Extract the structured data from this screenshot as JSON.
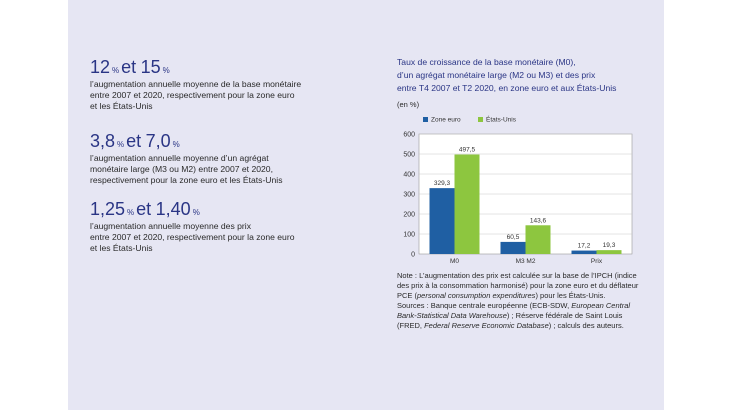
{
  "stats": [
    {
      "value1": "12",
      "unit": "%",
      "joiner": "et",
      "value2": "15",
      "text": "l’augmentation annuelle moyenne de la base monétaire\nentre 2007 et 2020, respectivement pour la zone euro\net les États-Unis"
    },
    {
      "value1": "3,8",
      "unit": "%",
      "joiner": "et",
      "value2": "7,0",
      "text": "l’augmentation annuelle moyenne d’un agrégat\nmonétaire large (M3 ou M2) entre 2007 et 2020,\nrespectivement pour la zone euro et les États-Unis"
    },
    {
      "value1": "1,25",
      "unit": "%",
      "joiner": "et",
      "value2": "1,40",
      "text": "l’augmentation annuelle moyenne des prix\nentre 2007 et 2020, respectivement pour la zone euro\net les États-Unis"
    }
  ],
  "chart_data": {
    "type": "bar",
    "title": "Taux de croissance de la base monétaire (M0),\nd’un agrégat monétaire large (M2 ou M3) et des prix\nentre T4 2007 et T2 2020, en zone euro et aux États-Unis",
    "unit_label": "(en %)",
    "categories": [
      "M0",
      "M3    M2",
      "Prix"
    ],
    "series": [
      {
        "name": "Zone euro",
        "color": "#1f5fa3",
        "values": [
          329.3,
          60.5,
          17.2
        ],
        "labels": [
          "329,3",
          "60,5",
          "17,2"
        ]
      },
      {
        "name": "États-Unis",
        "color": "#8dc63f",
        "values": [
          497.5,
          143.6,
          19.3
        ],
        "labels": [
          "497,5",
          "143,6",
          "19,3"
        ]
      }
    ],
    "yticks": [
      "0",
      "100",
      "200",
      "300",
      "400",
      "500",
      "600"
    ],
    "ylim": [
      0,
      600
    ],
    "grid": true,
    "legend_position": "top-left"
  },
  "note": {
    "line1_prefix": "Note : L’augmentation des prix est calculée sur la base de l’IPCH (indice des prix à la consommation harmonisé) pour la zone euro et du déflateur PCE (",
    "line1_italic": "personal consumption expenditures",
    "line1_suffix": ") pour les États-Unis.",
    "sources_prefix": "Sources : Banque centrale européenne (ECB-SDW, ",
    "sources_italic1": "European Central Bank-Statistical Data Warehouse",
    "sources_mid": ") ; Réserve fédérale de Saint Louis (FRED, ",
    "sources_italic2": "Federal Reserve Economic Database",
    "sources_suffix": ") ; calculs des auteurs."
  }
}
